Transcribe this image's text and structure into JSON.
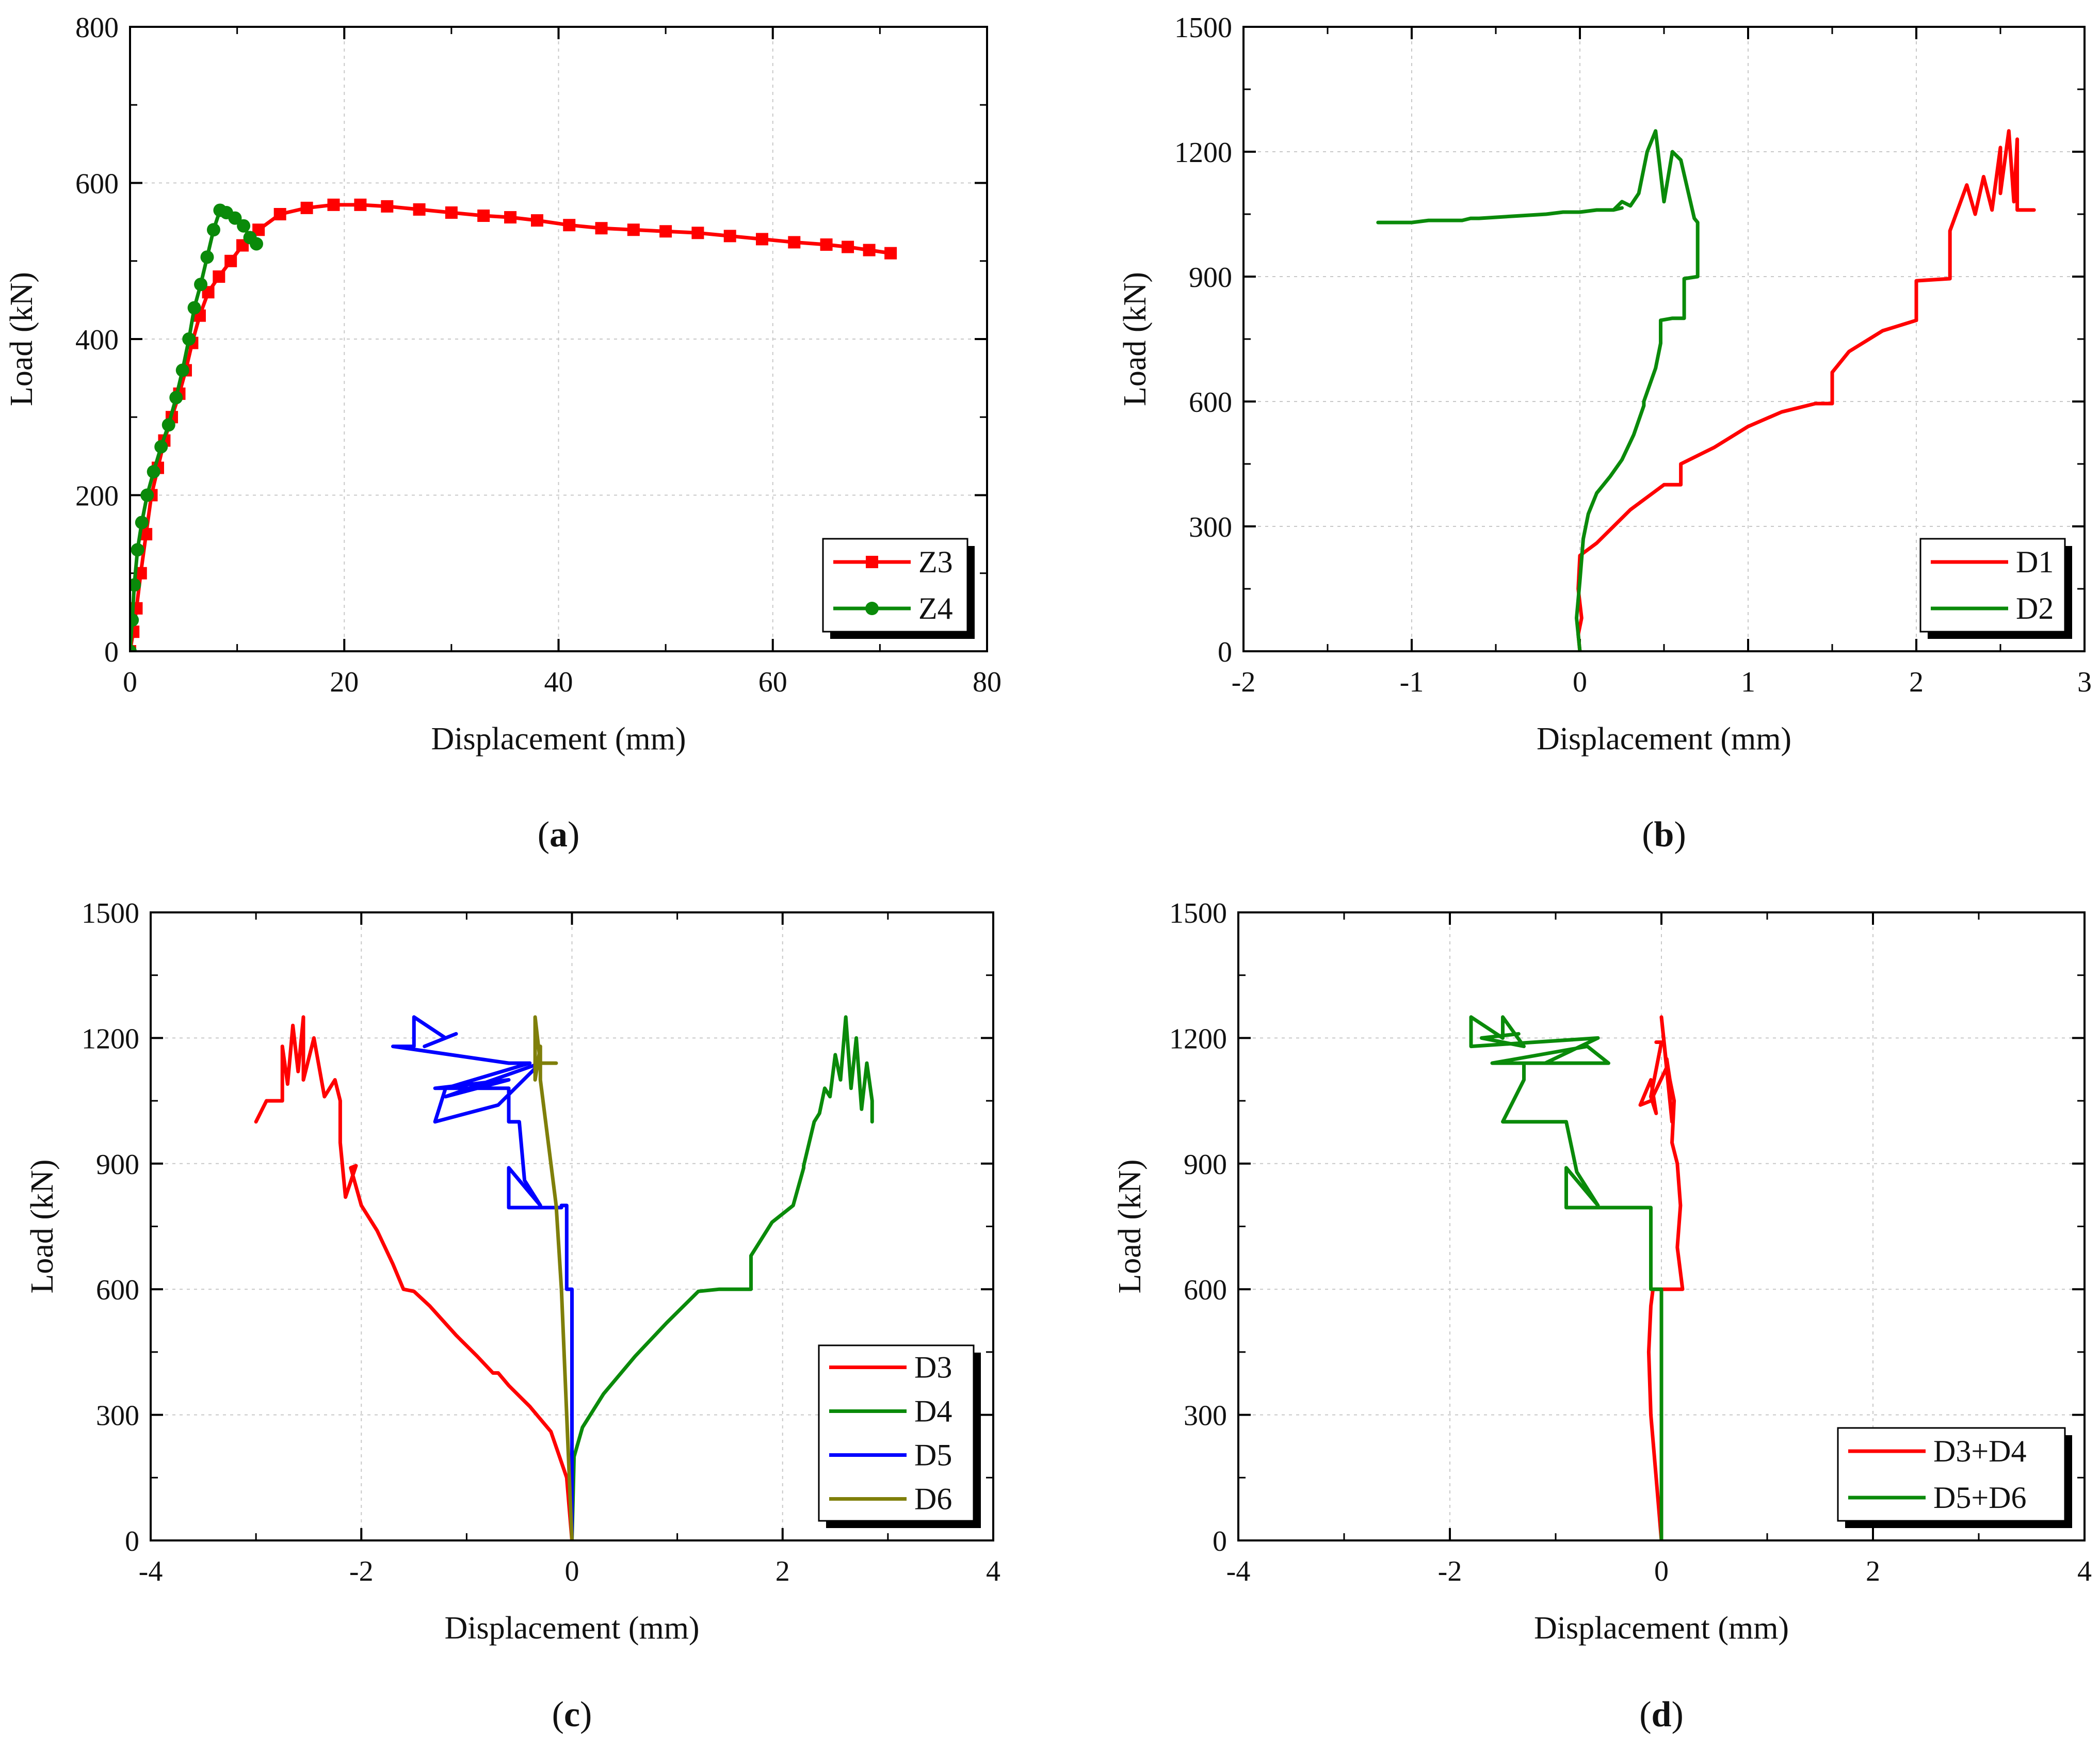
{
  "colors": {
    "red": "#ff0000",
    "green": "#0a8a0a",
    "blue": "#0000ff",
    "olive": "#7f7f0a"
  },
  "chart_data": [
    {
      "id": "a",
      "type": "line",
      "caption": "a",
      "xlabel": "Displacement (mm)",
      "ylabel": "Load (kN)",
      "xlim": [
        0,
        80
      ],
      "ylim": [
        0,
        800
      ],
      "xticks": [
        0,
        20,
        40,
        60,
        80
      ],
      "yticks": [
        0,
        200,
        400,
        600,
        800
      ],
      "grid": true,
      "legend": "bottom-right",
      "series": [
        {
          "name": "Z3",
          "color": "#ff0000",
          "marker": "square",
          "x": [
            0,
            0.3,
            0.6,
            1,
            1.5,
            2,
            2.6,
            3.2,
            3.9,
            4.6,
            5.2,
            5.8,
            6.5,
            7.3,
            8.3,
            9.4,
            10.5,
            12,
            14,
            16.5,
            19,
            21.5,
            24,
            27,
            30,
            33,
            35.5,
            38,
            41,
            44,
            47,
            50,
            53,
            56,
            59,
            62,
            65,
            67,
            69,
            71
          ],
          "y": [
            0,
            25,
            55,
            100,
            150,
            200,
            235,
            270,
            300,
            330,
            360,
            395,
            430,
            460,
            480,
            500,
            520,
            540,
            560,
            568,
            572,
            572,
            570,
            566,
            562,
            558,
            556,
            552,
            546,
            542,
            540,
            538,
            536,
            532,
            528,
            524,
            521,
            518,
            514,
            510
          ]
        },
        {
          "name": "Z4",
          "color": "#0a8a0a",
          "marker": "circle",
          "x": [
            0,
            0.2,
            0.4,
            0.7,
            1.1,
            1.6,
            2.2,
            2.9,
            3.6,
            4.3,
            4.9,
            5.5,
            6,
            6.6,
            7.2,
            7.8,
            8.4,
            9,
            9.8,
            10.6,
            11.2,
            11.8
          ],
          "y": [
            0,
            40,
            85,
            130,
            165,
            200,
            230,
            262,
            290,
            325,
            360,
            400,
            440,
            470,
            505,
            540,
            565,
            562,
            555,
            545,
            530,
            522
          ]
        }
      ]
    },
    {
      "id": "b",
      "type": "line",
      "caption": "b",
      "xlabel": "Displacement (mm)",
      "ylabel": "Load (kN)",
      "xlim": [
        -2,
        3
      ],
      "ylim": [
        0,
        1500
      ],
      "xticks": [
        -2,
        -1,
        0,
        1,
        2,
        3
      ],
      "yticks": [
        0,
        300,
        600,
        900,
        1200,
        1500
      ],
      "grid": true,
      "legend": "bottom-right",
      "series": [
        {
          "name": "D1",
          "color": "#ff0000",
          "x": [
            0,
            -0.01,
            0.01,
            -0.01,
            0,
            0.1,
            0.2,
            0.3,
            0.4,
            0.5,
            0.6,
            0.6,
            0.8,
            1.0,
            1.2,
            1.4,
            1.5,
            1.5,
            1.6,
            1.8,
            2.0,
            2.0,
            2.2,
            2.2,
            2.3,
            2.35,
            2.4,
            2.45,
            2.5,
            2.5,
            2.55,
            2.58,
            2.6,
            2.6,
            2.7
          ],
          "y": [
            0,
            40,
            80,
            150,
            230,
            260,
            300,
            340,
            370,
            400,
            400,
            450,
            490,
            540,
            575,
            595,
            595,
            670,
            720,
            770,
            795,
            890,
            895,
            1010,
            1120,
            1050,
            1140,
            1060,
            1210,
            1100,
            1250,
            1080,
            1230,
            1060,
            1060
          ]
        },
        {
          "name": "D2",
          "color": "#0a8a0a",
          "x": [
            0,
            -0.02,
            0,
            0.02,
            0.05,
            0.1,
            0.18,
            0.25,
            0.32,
            0.38,
            0.38,
            0.45,
            0.48,
            0.48,
            0.55,
            0.62,
            0.62,
            0.7,
            0.7,
            0.68,
            0.6,
            0.55,
            0.5,
            0.45,
            0.4,
            0.35,
            0.3,
            0.25,
            0.2,
            0.25,
            0.2,
            0.1,
            0,
            -0.1,
            -0.2,
            -0.4,
            -0.6,
            -0.65,
            -0.7,
            -0.9,
            -1.0,
            -1.2
          ],
          "y": [
            0,
            80,
            170,
            270,
            330,
            380,
            420,
            460,
            520,
            590,
            600,
            680,
            740,
            795,
            800,
            800,
            895,
            900,
            1030,
            1040,
            1180,
            1200,
            1080,
            1250,
            1200,
            1100,
            1070,
            1080,
            1060,
            1065,
            1060,
            1060,
            1055,
            1055,
            1050,
            1045,
            1040,
            1040,
            1035,
            1035,
            1030,
            1030
          ]
        }
      ]
    },
    {
      "id": "c",
      "type": "line",
      "caption": "c",
      "xlabel": "Displacement (mm)",
      "ylabel": "Load (kN)",
      "xlim": [
        -4,
        4
      ],
      "ylim": [
        0,
        1500
      ],
      "xticks": [
        -4,
        -2,
        0,
        2,
        4
      ],
      "yticks": [
        0,
        300,
        600,
        900,
        1200,
        1500
      ],
      "grid": true,
      "legend": "bottom-right",
      "series": [
        {
          "name": "D3",
          "color": "#ff0000",
          "x": [
            0,
            -0.05,
            -0.2,
            -0.4,
            -0.6,
            -0.7,
            -0.75,
            -0.9,
            -1.1,
            -1.35,
            -1.5,
            -1.6,
            -1.7,
            -1.85,
            -2.0,
            -2.1,
            -2.05,
            -2.15,
            -2.2,
            -2.2,
            -2.25,
            -2.35,
            -2.45,
            -2.55,
            -2.55,
            -2.6,
            -2.65,
            -2.7,
            -2.75,
            -2.75,
            -2.8,
            -2.9,
            -3.0
          ],
          "y": [
            0,
            150,
            260,
            320,
            370,
            400,
            400,
            440,
            490,
            560,
            595,
            600,
            660,
            740,
            800,
            890,
            895,
            820,
            950,
            1050,
            1100,
            1060,
            1200,
            1100,
            1250,
            1120,
            1230,
            1090,
            1180,
            1050,
            1050,
            1050,
            1000
          ]
        },
        {
          "name": "D4",
          "color": "#0a8a0a",
          "x": [
            0,
            0.02,
            0.1,
            0.3,
            0.6,
            0.9,
            1.2,
            1.4,
            1.7,
            1.7,
            1.9,
            2.1,
            2.2,
            2.2,
            2.3,
            2.35,
            2.4,
            2.45,
            2.5,
            2.55,
            2.6,
            2.65,
            2.7,
            2.75,
            2.8,
            2.85,
            2.85
          ],
          "y": [
            0,
            200,
            270,
            350,
            440,
            520,
            595,
            600,
            600,
            680,
            760,
            800,
            890,
            895,
            1000,
            1020,
            1080,
            1060,
            1160,
            1100,
            1250,
            1080,
            1200,
            1030,
            1140,
            1050,
            1000
          ]
        },
        {
          "name": "D5",
          "color": "#0000ff",
          "x": [
            0,
            0,
            -0.05,
            -0.05,
            -0.1,
            -0.1,
            -0.3,
            -0.6,
            -0.6,
            -0.3,
            -0.45,
            -0.5,
            -0.5,
            -0.6,
            -0.6,
            -1.3,
            -0.6,
            -0.6,
            -1.2,
            -0.3,
            -0.7,
            -1.3,
            -1.2,
            -0.4,
            -0.6,
            -1.7,
            -1.5,
            -1.5,
            -1.2,
            -1.4,
            -1.1
          ],
          "y": [
            0,
            600,
            600,
            800,
            800,
            795,
            795,
            795,
            890,
            800,
            860,
            1000,
            1000,
            1000,
            1080,
            1080,
            1100,
            1100,
            1060,
            1140,
            1040,
            1000,
            1080,
            1140,
            1140,
            1180,
            1180,
            1250,
            1200,
            1180,
            1210
          ]
        },
        {
          "name": "D6",
          "color": "#7f7f0a",
          "x": [
            0,
            -0.05,
            -0.1,
            -0.15,
            -0.2,
            -0.25,
            -0.3,
            -0.3,
            -0.35,
            -0.35,
            -0.3,
            -0.3,
            -0.25,
            -0.15,
            -0.3
          ],
          "y": [
            0,
            300,
            600,
            800,
            900,
            1000,
            1100,
            1140,
            1250,
            1100,
            1180,
            1140,
            1140,
            1140,
            1140
          ]
        }
      ]
    },
    {
      "id": "d",
      "type": "line",
      "caption": "d",
      "xlabel": "Displacement (mm)",
      "ylabel": "Load (kN)",
      "xlim": [
        -4,
        4
      ],
      "ylim": [
        0,
        1500
      ],
      "xticks": [
        -4,
        -2,
        0,
        2,
        4
      ],
      "yticks": [
        0,
        300,
        600,
        900,
        1200,
        1500
      ],
      "grid": true,
      "legend": "bottom-right",
      "series": [
        {
          "name": "D3+D4",
          "color": "#ff0000",
          "x": [
            0,
            -0.05,
            -0.1,
            -0.12,
            -0.1,
            -0.08,
            0.2,
            0.15,
            0.18,
            0.15,
            0.1,
            0.12,
            0.08,
            0.05,
            0.1,
            0,
            0.05,
            -0.1,
            -0.2,
            -0.1,
            -0.05,
            -0.1,
            0,
            -0.05
          ],
          "y": [
            0,
            150,
            300,
            450,
            560,
            600,
            600,
            700,
            800,
            900,
            950,
            1050,
            1100,
            1150,
            1000,
            1250,
            1130,
            1050,
            1040,
            1100,
            1020,
            1060,
            1190,
            1190
          ]
        },
        {
          "name": "D5+D6",
          "color": "#0a8a0a",
          "x": [
            0,
            0,
            -0.1,
            -0.1,
            -0.5,
            -0.9,
            -0.9,
            -0.6,
            -0.8,
            -0.9,
            -0.9,
            -1.5,
            -1.3,
            -1.3,
            -0.5,
            -0.7,
            -1.6,
            -1.1,
            -0.6,
            -1.8,
            -1.8,
            -1.5,
            -1.5,
            -1.3,
            -1.7,
            -1.35
          ],
          "y": [
            0,
            600,
            600,
            795,
            795,
            795,
            890,
            800,
            880,
            1000,
            1000,
            1000,
            1100,
            1140,
            1140,
            1180,
            1140,
            1140,
            1200,
            1180,
            1250,
            1200,
            1250,
            1180,
            1200,
            1210
          ]
        }
      ]
    }
  ]
}
